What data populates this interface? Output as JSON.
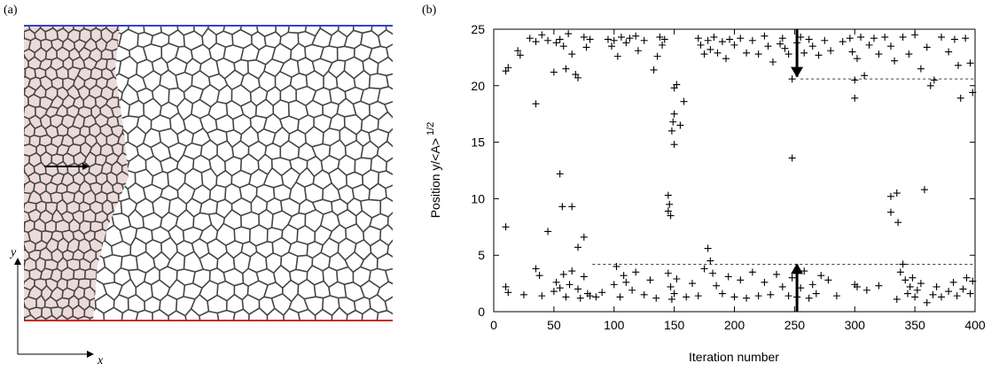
{
  "panel_a": {
    "label": "(a)",
    "x_label": "x",
    "y_label": "y"
  },
  "chart_data": {
    "type": "scatter",
    "label": "(b)",
    "x_label": "Iteration number",
    "y_label": "Position y/<A>",
    "y_label_superscript": "1/2",
    "color": "#000000",
    "x": [
      10,
      12,
      20,
      22,
      30,
      35,
      40,
      45,
      50,
      52,
      55,
      58,
      60,
      62,
      65,
      68,
      70,
      75,
      77,
      80,
      95,
      98,
      100,
      103,
      106,
      110,
      113,
      118,
      120,
      125,
      133,
      136,
      138,
      140,
      142,
      150,
      152,
      170,
      172,
      175,
      178,
      180,
      183,
      186,
      190,
      193,
      196,
      200,
      205,
      210,
      215,
      220,
      225,
      228,
      232,
      238,
      240,
      242,
      245,
      248,
      252,
      255,
      258,
      262,
      265,
      270,
      275,
      280,
      290,
      296,
      298,
      300,
      302,
      305,
      308,
      312,
      316,
      320,
      325,
      330,
      333,
      340,
      345,
      350,
      355,
      360,
      363,
      366,
      372,
      378,
      383,
      386,
      388,
      392,
      396,
      398,
      10,
      35,
      55,
      57,
      65,
      45,
      75,
      70,
      145,
      146,
      145,
      147,
      148,
      149,
      150,
      150,
      155,
      158,
      248,
      330,
      335,
      330,
      336,
      358,
      300,
      10,
      12,
      25,
      35,
      38,
      40,
      50,
      52,
      55,
      58,
      60,
      63,
      65,
      70,
      72,
      75,
      78,
      80,
      85,
      90,
      100,
      102,
      105,
      108,
      110,
      115,
      118,
      125,
      130,
      135,
      145,
      147,
      148,
      150,
      152,
      160,
      165,
      170,
      175,
      178,
      180,
      182,
      185,
      190,
      195,
      200,
      205,
      210,
      215,
      220,
      225,
      230,
      235,
      240,
      245,
      248,
      252,
      255,
      258,
      262,
      265,
      268,
      272,
      278,
      285,
      300,
      302,
      310,
      320,
      335,
      338,
      340,
      342,
      344,
      346,
      348,
      350,
      352,
      355,
      360,
      365,
      368,
      372,
      378,
      382,
      385,
      390,
      393,
      396,
      398
    ],
    "values": [
      21.3,
      21.6,
      23.1,
      22.7,
      24.2,
      23.9,
      24.5,
      24.0,
      21.2,
      23.8,
      24.1,
      23.5,
      21.5,
      24.6,
      22.8,
      21.0,
      20.7,
      24.3,
      23.4,
      24.1,
      24.1,
      23.5,
      24.0,
      22.6,
      24.3,
      23.8,
      24.2,
      24.4,
      23.1,
      24.0,
      21.4,
      22.6,
      24.3,
      23.6,
      24.1,
      19.8,
      20.1,
      24.2,
      23.6,
      22.8,
      24.0,
      23.2,
      24.3,
      22.9,
      23.9,
      22.4,
      24.1,
      23.6,
      24.2,
      22.9,
      24.0,
      22.8,
      24.4,
      23.5,
      22.1,
      23.7,
      24.2,
      23.3,
      22.8,
      20.6,
      23.8,
      24.3,
      22.9,
      24.1,
      23.5,
      22.7,
      24.0,
      23.1,
      23.9,
      24.2,
      23.0,
      20.5,
      22.4,
      24.3,
      20.9,
      23.6,
      24.2,
      22.8,
      24.3,
      23.5,
      22.2,
      24.3,
      22.8,
      24.5,
      21.5,
      23.4,
      20.0,
      20.5,
      24.3,
      23.0,
      24.1,
      21.8,
      18.9,
      24.2,
      22.0,
      19.4,
      7.5,
      18.4,
      12.2,
      9.3,
      9.3,
      7.1,
      6.6,
      5.7,
      10.3,
      9.5,
      8.9,
      8.5,
      16.0,
      16.8,
      17.5,
      14.8,
      16.5,
      18.6,
      13.6,
      10.2,
      10.5,
      8.8,
      7.9,
      10.8,
      18.9,
      2.2,
      1.7,
      1.5,
      3.8,
      3.2,
      1.4,
      1.8,
      2.6,
      2.1,
      3.3,
      1.3,
      2.4,
      3.6,
      2.0,
      1.2,
      3.1,
      1.6,
      1.4,
      1.3,
      1.7,
      2.4,
      4.0,
      1.3,
      3.2,
      2.6,
      1.9,
      3.5,
      1.5,
      2.8,
      1.2,
      3.4,
      2.2,
      1.1,
      1.6,
      2.9,
      1.3,
      2.5,
      1.4,
      3.8,
      5.6,
      4.5,
      3.4,
      2.3,
      1.6,
      3.1,
      1.3,
      2.8,
      1.2,
      3.5,
      1.4,
      2.6,
      1.5,
      3.3,
      2.2,
      1.4,
      3.0,
      1.3,
      2.1,
      3.6,
      1.2,
      2.4,
      1.6,
      3.2,
      2.8,
      1.4,
      2.4,
      2.2,
      1.9,
      2.3,
      1.1,
      3.5,
      4.2,
      2.8,
      1.6,
      2.2,
      3.0,
      1.3,
      1.9,
      2.5,
      0.8,
      1.5,
      2.2,
      1.3,
      1.8,
      2.6,
      1.4,
      2.0,
      3.0,
      1.6,
      2.7
    ],
    "xlim": [
      0,
      400
    ],
    "ylim": [
      0,
      25
    ],
    "xticks": [
      0,
      50,
      100,
      150,
      200,
      250,
      300,
      350,
      400
    ],
    "yticks": [
      0,
      5,
      10,
      15,
      20,
      25
    ],
    "reference_lines": [
      {
        "y": 20.6,
        "x0": 255,
        "x1": 400
      },
      {
        "y": 4.2,
        "x0": 82,
        "x1": 400
      }
    ],
    "arrows": [
      {
        "x": 252,
        "from": 25,
        "to": 20.8
      },
      {
        "x": 252,
        "from": 0,
        "to": 4.2
      }
    ]
  }
}
